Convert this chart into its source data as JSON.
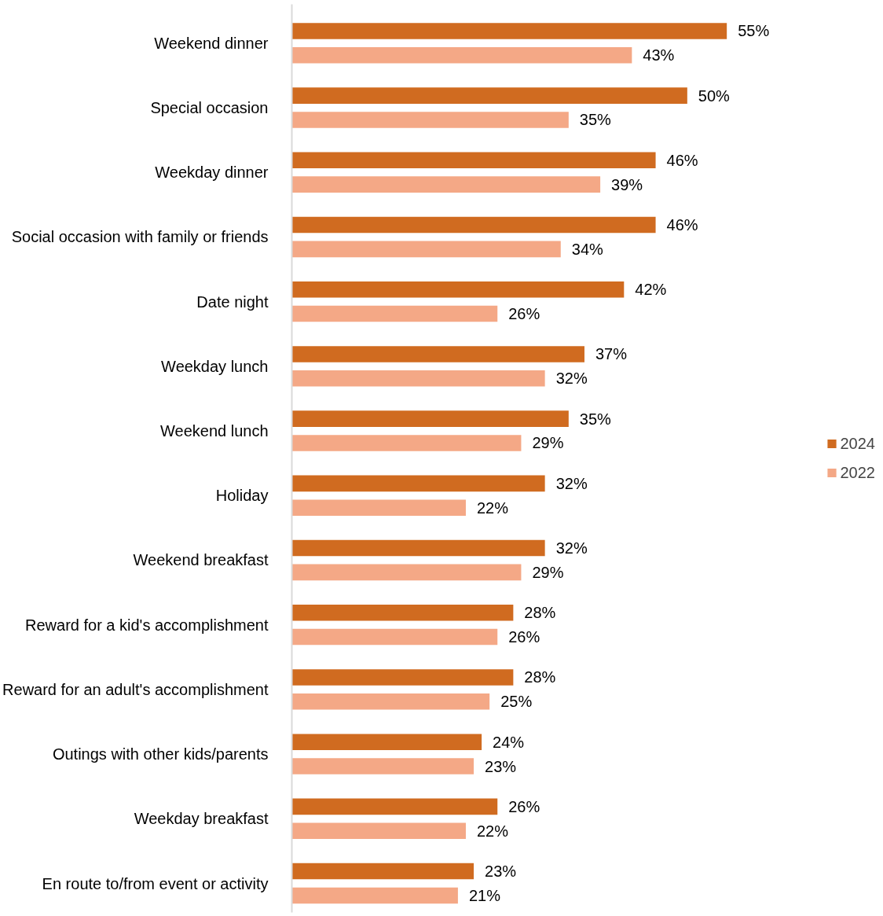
{
  "chart_data": {
    "type": "bar",
    "orientation": "horizontal",
    "categories": [
      "Weekend dinner",
      "Special occasion",
      "Weekday dinner",
      "Social occasion with family or friends",
      "Date night",
      "Weekday lunch",
      "Weekend lunch",
      "Holiday",
      "Weekend breakfast",
      "Reward for a kid's accomplishment",
      "Reward for an adult's accomplishment",
      "Outings with other kids/parents",
      "Weekday breakfast",
      "En route to/from event or activity"
    ],
    "series": [
      {
        "name": "2024",
        "color": "#d06b20",
        "values": [
          55,
          50,
          46,
          46,
          42,
          37,
          35,
          32,
          32,
          28,
          28,
          24,
          26,
          23
        ],
        "value_labels": [
          "55%",
          "50%",
          "46%",
          "46%",
          "42%",
          "37%",
          "35%",
          "32%",
          "32%",
          "28%",
          "28%",
          "24%",
          "26%",
          "23%"
        ]
      },
      {
        "name": "2022",
        "color": "#f4a886",
        "values": [
          43,
          35,
          39,
          34,
          26,
          32,
          29,
          22,
          29,
          26,
          25,
          23,
          22,
          21
        ],
        "value_labels": [
          "43%",
          "35%",
          "39%",
          "34%",
          "26%",
          "32%",
          "29%",
          "22%",
          "29%",
          "26%",
          "25%",
          "23%",
          "22%",
          "21%"
        ]
      }
    ],
    "legend": "right",
    "grid": false
  }
}
